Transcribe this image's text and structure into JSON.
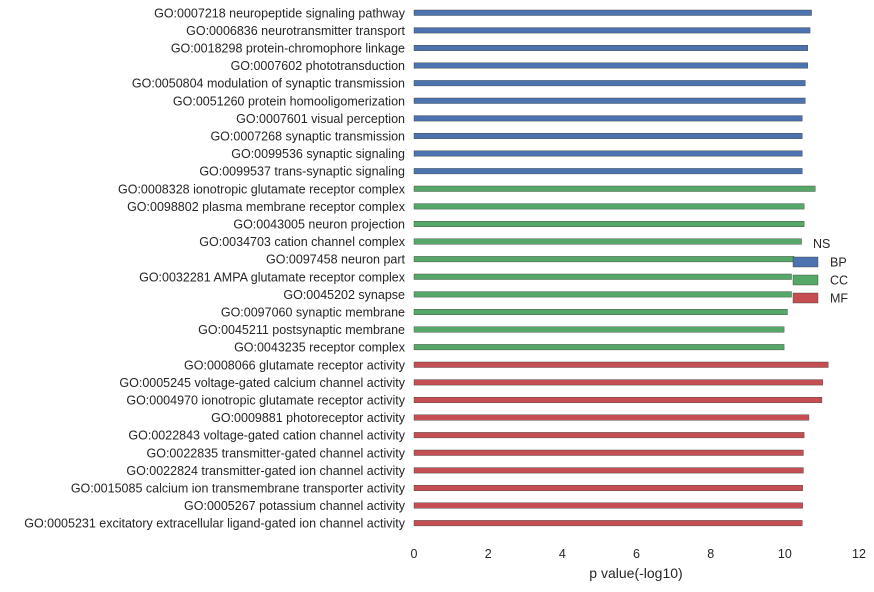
{
  "chart_data": {
    "type": "bar",
    "orientation": "horizontal",
    "xlabel": "p value(-log10)",
    "ylabel": "",
    "xlim": [
      0,
      12
    ],
    "xticks": [
      0,
      2,
      4,
      6,
      8,
      10,
      12
    ],
    "grid": false,
    "legend": {
      "title": "NS",
      "placement": "right",
      "entries": [
        {
          "name": "BP",
          "color": "#4c72b0"
        },
        {
          "name": "CC",
          "color": "#55a868"
        },
        {
          "name": "MF",
          "color": "#c44e52"
        }
      ]
    },
    "series": [
      {
        "name": "BP",
        "color": "#4c72b0",
        "categories": [
          "GO:0007218 neuropeptide signaling pathway",
          "GO:0006836 neurotransmitter transport",
          "GO:0018298 protein-chromophore linkage",
          "GO:0007602 phototransduction",
          "GO:0050804 modulation of synaptic transmission",
          "GO:0051260 protein homooligomerization",
          "GO:0007601 visual perception",
          "GO:0007268 synaptic transmission",
          "GO:0099536 synaptic signaling",
          "GO:0099537 trans-synaptic signaling"
        ],
        "values": [
          10.72,
          10.68,
          10.62,
          10.62,
          10.55,
          10.55,
          10.47,
          10.47,
          10.47,
          10.47
        ]
      },
      {
        "name": "CC",
        "color": "#55a868",
        "categories": [
          "GO:0008328 ionotropic glutamate receptor complex",
          "GO:0098802 plasma membrane receptor complex",
          "GO:0043005 neuron projection",
          "GO:0034703 cation channel complex",
          "GO:0097458 neuron part",
          "GO:0032281 AMPA glutamate receptor complex",
          "GO:0045202 synapse",
          "GO:0097060 synaptic membrane",
          "GO:0045211 postsynaptic membrane",
          "GO:0043235 receptor complex"
        ],
        "values": [
          10.82,
          10.52,
          10.52,
          10.45,
          10.25,
          10.18,
          10.18,
          10.07,
          9.98,
          9.98
        ]
      },
      {
        "name": "MF",
        "color": "#c44e52",
        "categories": [
          "GO:0008066 glutamate receptor activity",
          "GO:0005245 voltage-gated calcium channel activity",
          "GO:0004970 ionotropic glutamate receptor activity",
          "GO:0009881 photoreceptor activity",
          "GO:0022843 voltage-gated cation channel activity",
          "GO:0022835 transmitter-gated channel activity",
          "GO:0022824 transmitter-gated ion channel activity",
          "GO:0015085 calcium ion transmembrane transporter activity",
          "GO:0005267 potassium channel activity",
          "GO:0005231 excitatory extracellular ligand-gated ion channel activity"
        ],
        "values": [
          11.17,
          11.02,
          11.0,
          10.65,
          10.52,
          10.5,
          10.5,
          10.48,
          10.48,
          10.47
        ]
      }
    ]
  }
}
